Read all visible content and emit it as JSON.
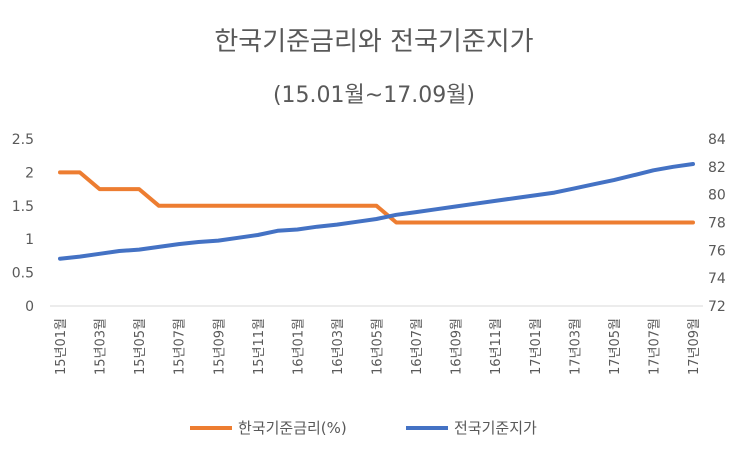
{
  "chart_data": {
    "type": "line",
    "title": "한국기준금리와 전국기준지가",
    "subtitle": "(15.01월~17.09월)",
    "categories": [
      "15년01월",
      "15년02월",
      "15년03월",
      "15년04월",
      "15년05월",
      "15년06월",
      "15년07월",
      "15년08월",
      "15년09월",
      "15년10월",
      "15년11월",
      "15년12월",
      "16년01월",
      "16년02월",
      "16년03월",
      "16년04월",
      "16년05월",
      "16년06월",
      "16년07월",
      "16년08월",
      "16년09월",
      "16년10월",
      "16년11월",
      "16년12월",
      "17년01월",
      "17년02월",
      "17년03월",
      "17년04월",
      "17년05월",
      "17년06월",
      "17년07월",
      "17년08월",
      "17년09월"
    ],
    "x_tick_labels": [
      "15년01월",
      "15년03월",
      "15년05월",
      "15년07월",
      "15년09월",
      "15년11월",
      "16년01월",
      "16년03월",
      "16년05월",
      "16년07월",
      "16년09월",
      "16년11월",
      "17년01월",
      "17년03월",
      "17년05월",
      "17년07월",
      "17년09월"
    ],
    "y_left": {
      "ylim": [
        0,
        2.5
      ],
      "ticks": [
        "0",
        "0.5",
        "1",
        "1.5",
        "2",
        "2.5"
      ]
    },
    "y_right": {
      "ylim": [
        72,
        84
      ],
      "ticks": [
        "72",
        "74",
        "76",
        "78",
        "80",
        "82",
        "84"
      ]
    },
    "series": [
      {
        "name": "한국기준금리(%)",
        "axis": "left",
        "color": "#ED7D31",
        "values": [
          2.0,
          2.0,
          1.75,
          1.75,
          1.75,
          1.5,
          1.5,
          1.5,
          1.5,
          1.5,
          1.5,
          1.5,
          1.5,
          1.5,
          1.5,
          1.5,
          1.5,
          1.25,
          1.25,
          1.25,
          1.25,
          1.25,
          1.25,
          1.25,
          1.25,
          1.25,
          1.25,
          1.25,
          1.25,
          1.25,
          1.25,
          1.25,
          1.25
        ]
      },
      {
        "name": "전국기준지가",
        "axis": "right",
        "color": "#4472C4",
        "values": [
          75.4,
          75.55,
          75.75,
          75.95,
          76.05,
          76.25,
          76.45,
          76.6,
          76.7,
          76.9,
          77.1,
          77.4,
          77.5,
          77.7,
          77.85,
          78.05,
          78.25,
          78.55,
          78.75,
          78.95,
          79.15,
          79.35,
          79.55,
          79.75,
          79.95,
          80.15,
          80.45,
          80.75,
          81.05,
          81.4,
          81.75,
          82.0,
          82.2
        ]
      }
    ],
    "grid": false,
    "legend_position": "bottom"
  }
}
